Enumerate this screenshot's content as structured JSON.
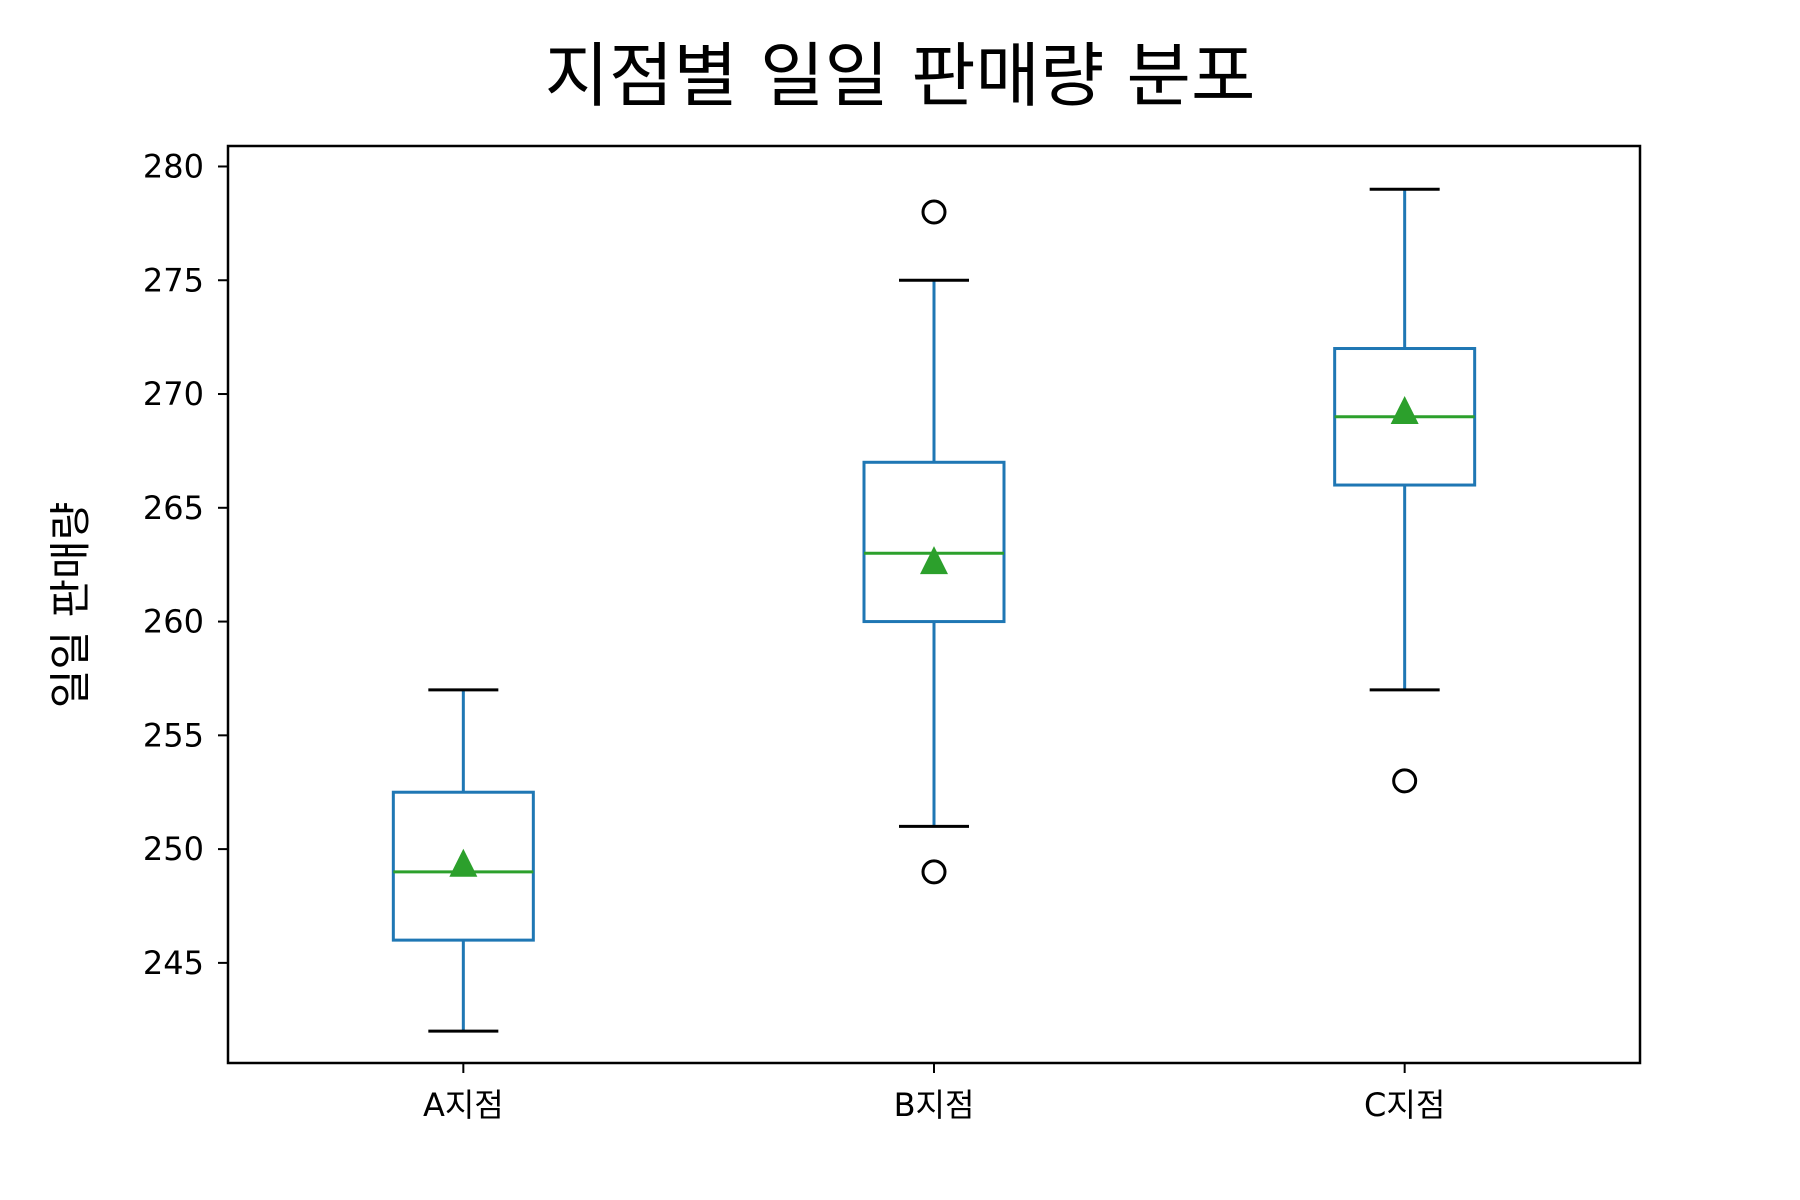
{
  "chart_data": {
    "type": "box",
    "title": "지점별 일일 판매량 분포",
    "xlabel": "",
    "ylabel": "일일 판매량",
    "categories": [
      "A지점",
      "B지점",
      "C지점"
    ],
    "ylim": [
      240.6,
      280.9
    ],
    "yticks": [
      245,
      250,
      255,
      260,
      265,
      270,
      275,
      280
    ],
    "grid": false,
    "series": [
      {
        "category": "A지점",
        "whisker_low": 242,
        "q1": 246,
        "median": 249,
        "q3": 252.5,
        "whisker_high": 257,
        "mean": 249.4,
        "outliers": []
      },
      {
        "category": "B지점",
        "whisker_low": 251,
        "q1": 260,
        "median": 263,
        "q3": 267,
        "whisker_high": 275,
        "mean": 262.7,
        "outliers": [
          249,
          278
        ]
      },
      {
        "category": "C지점",
        "whisker_low": 257,
        "q1": 266,
        "median": 269,
        "q3": 272,
        "whisker_high": 279,
        "mean": 269.3,
        "outliers": [
          253
        ]
      }
    ],
    "colors": {
      "box": "#1f77b4",
      "median": "#2ca02c",
      "mean": "#2ca02c",
      "whisker": "#1f77b4",
      "cap": "#000000",
      "outlier": "#000000"
    }
  }
}
